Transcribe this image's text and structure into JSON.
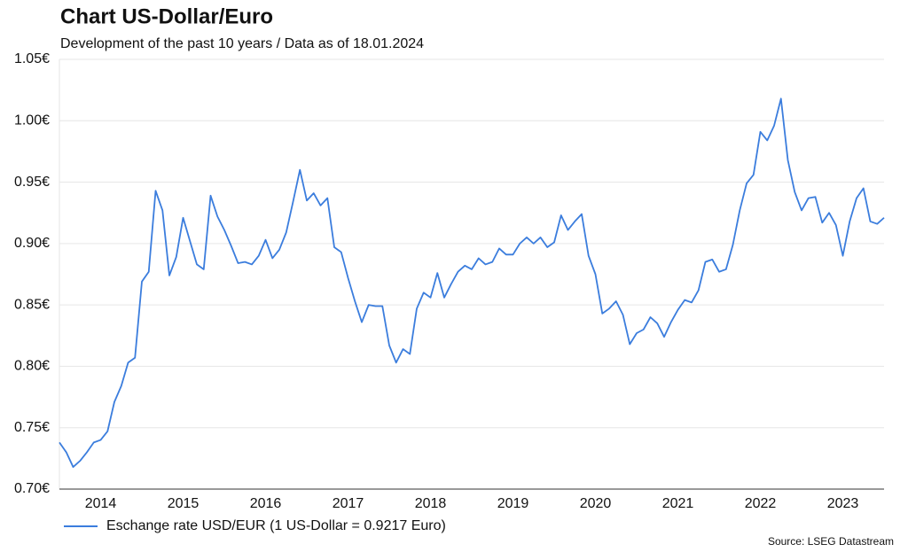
{
  "chart_data": {
    "type": "line",
    "title": "Chart US-Dollar/Euro",
    "subtitle": "Development of the past 10 years / Data as of 18.01.2024",
    "source": "Source: LSEG Datastream",
    "categories": [
      null,
      null,
      null,
      null,
      null,
      null,
      "2014",
      null,
      null,
      null,
      null,
      null,
      null,
      null,
      null,
      null,
      null,
      null,
      "2015",
      null,
      null,
      null,
      null,
      null,
      null,
      null,
      null,
      null,
      null,
      null,
      "2016",
      null,
      null,
      null,
      null,
      null,
      null,
      null,
      null,
      null,
      null,
      null,
      "2017",
      null,
      null,
      null,
      null,
      null,
      null,
      null,
      null,
      null,
      null,
      null,
      "2018",
      null,
      null,
      null,
      null,
      null,
      null,
      null,
      null,
      null,
      null,
      null,
      "2019",
      null,
      null,
      null,
      null,
      null,
      null,
      null,
      null,
      null,
      null,
      null,
      "2020",
      null,
      null,
      null,
      null,
      null,
      null,
      null,
      null,
      null,
      null,
      null,
      "2021",
      null,
      null,
      null,
      null,
      null,
      null,
      null,
      null,
      null,
      null,
      null,
      "2022",
      null,
      null,
      null,
      null,
      null,
      null,
      null,
      null,
      null,
      null,
      null,
      "2023",
      null,
      null,
      null,
      null,
      null,
      null
    ],
    "series": [
      {
        "name": "Eschange rate USD/EUR (1 US-Dollar = 0.9217 Euro)",
        "color": "#3b7ddd",
        "values": [
          0.738,
          0.73,
          0.718,
          0.723,
          0.73,
          0.738,
          0.74,
          0.747,
          0.771,
          0.784,
          0.803,
          0.807,
          0.869,
          0.877,
          0.943,
          0.927,
          0.874,
          0.889,
          0.921,
          0.902,
          0.883,
          0.879,
          0.939,
          0.922,
          0.911,
          0.898,
          0.884,
          0.885,
          0.883,
          0.89,
          0.903,
          0.888,
          0.895,
          0.909,
          0.934,
          0.96,
          0.935,
          0.941,
          0.931,
          0.937,
          0.897,
          0.893,
          0.872,
          0.853,
          0.836,
          0.85,
          0.849,
          0.849,
          0.817,
          0.803,
          0.814,
          0.81,
          0.847,
          0.86,
          0.856,
          0.876,
          0.856,
          0.867,
          0.877,
          0.882,
          0.879,
          0.888,
          0.883,
          0.885,
          0.896,
          0.891,
          0.891,
          0.9,
          0.905,
          0.9,
          0.905,
          0.897,
          0.901,
          0.923,
          0.911,
          0.918,
          0.924,
          0.89,
          0.875,
          0.843,
          0.847,
          0.853,
          0.842,
          0.818,
          0.827,
          0.83,
          0.84,
          0.835,
          0.824,
          0.836,
          0.846,
          0.854,
          0.852,
          0.862,
          0.885,
          0.887,
          0.877,
          0.879,
          0.899,
          0.927,
          0.949,
          0.956,
          0.991,
          0.984,
          0.996,
          1.018,
          0.968,
          0.942,
          0.927,
          0.937,
          0.938,
          0.917,
          0.925,
          0.915,
          0.89,
          0.918,
          0.937,
          0.945,
          0.918,
          0.916,
          0.921
        ]
      }
    ],
    "ylim": [
      0.7,
      1.05
    ],
    "yticks": [
      {
        "value": 0.7,
        "label": "0.70€"
      },
      {
        "value": 0.75,
        "label": "0.75€"
      },
      {
        "value": 0.8,
        "label": "0.80€"
      },
      {
        "value": 0.85,
        "label": "0.85€"
      },
      {
        "value": 0.9,
        "label": "0.90€"
      },
      {
        "value": 0.95,
        "label": "0.95€"
      },
      {
        "value": 1.0,
        "label": "1.00€"
      },
      {
        "value": 1.05,
        "label": "1.05€"
      }
    ],
    "grid": true
  }
}
